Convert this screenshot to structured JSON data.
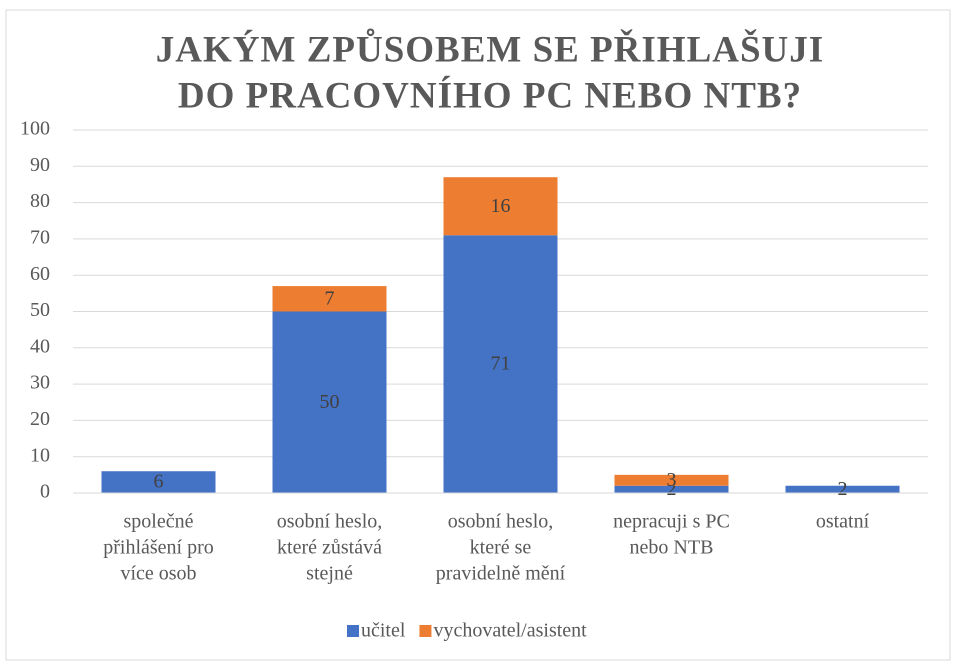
{
  "chart_data": {
    "type": "stacked-bar",
    "title": [
      "JAKÝM ZPŮSOBEM SE PŘIHLAŠUJI",
      "DO PRACOVNÍHO PC NEBO NTB?"
    ],
    "categories": [
      [
        "společné",
        "přihlášení pro",
        "více osob"
      ],
      [
        "osobní heslo,",
        "které zůstává",
        "stejné"
      ],
      [
        "osobní heslo,",
        "které se",
        "pravidelně mění"
      ],
      [
        "nepracuji s PC",
        "nebo NTB"
      ],
      [
        "ostatní"
      ]
    ],
    "series": [
      {
        "name": "učitel",
        "color": "#4472c4",
        "values": [
          6,
          50,
          71,
          2,
          2
        ]
      },
      {
        "name": "vychovatel/asistent",
        "color": "#ed7d31",
        "values": [
          null,
          7,
          16,
          3,
          null
        ]
      }
    ],
    "ylim": [
      0,
      100
    ],
    "yticks": [
      0,
      10,
      20,
      30,
      40,
      50,
      60,
      70,
      80,
      90,
      100
    ],
    "grid": true,
    "legend": "bottom"
  }
}
